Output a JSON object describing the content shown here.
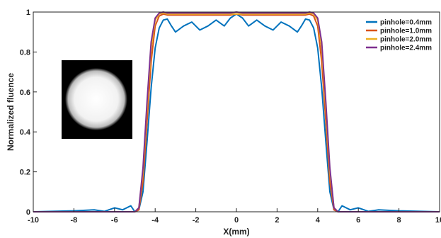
{
  "chart_data": {
    "type": "line",
    "xlabel": "X(mm)",
    "ylabel": "Normalized fluence",
    "xlim": [
      -10,
      10
    ],
    "ylim": [
      0,
      1
    ],
    "x_ticks": [
      -10,
      -8,
      -6,
      -4,
      -2,
      0,
      2,
      4,
      6,
      8,
      10
    ],
    "y_ticks": [
      0,
      0.2,
      0.4,
      0.6,
      0.8,
      1
    ],
    "x_tick_labels": [
      "-10",
      "-8",
      "-6",
      "-4",
      "-2",
      "0",
      "2",
      "4",
      "6",
      "8",
      "10"
    ],
    "y_tick_labels": [
      "0",
      "0.2",
      "0.4",
      "0.6",
      "0.8",
      "1"
    ],
    "grid": false,
    "legend_position": "top-right",
    "inset": "circular beam spot image (white disk on black square)",
    "series": [
      {
        "name": "pinhole=0.4mm",
        "color": "#0072BD",
        "x": [
          -10,
          -8,
          -7,
          -6.5,
          -6,
          -5.6,
          -5.2,
          -5.0,
          -4.8,
          -4.6,
          -4.4,
          -4.2,
          -4.0,
          -3.8,
          -3.6,
          -3.4,
          -3.2,
          -3.0,
          -2.6,
          -2.2,
          -1.8,
          -1.4,
          -1.0,
          -0.6,
          -0.3,
          0,
          0.3,
          0.6,
          1.0,
          1.4,
          1.8,
          2.2,
          2.6,
          3.0,
          3.2,
          3.4,
          3.6,
          3.8,
          4.0,
          4.2,
          4.4,
          4.6,
          4.8,
          5.0,
          5.2,
          5.6,
          6.0,
          6.5,
          7,
          8,
          10
        ],
        "values": [
          0.0,
          0.005,
          0.01,
          0.002,
          0.02,
          0.01,
          0.03,
          0.0,
          0.01,
          0.1,
          0.35,
          0.62,
          0.82,
          0.92,
          0.96,
          0.965,
          0.93,
          0.9,
          0.93,
          0.95,
          0.91,
          0.93,
          0.96,
          0.93,
          0.97,
          0.99,
          0.97,
          0.93,
          0.96,
          0.93,
          0.91,
          0.95,
          0.93,
          0.9,
          0.93,
          0.965,
          0.96,
          0.92,
          0.82,
          0.62,
          0.35,
          0.1,
          0.01,
          0.0,
          0.03,
          0.01,
          0.02,
          0.002,
          0.01,
          0.005,
          0.0
        ]
      },
      {
        "name": "pinhole=1.0mm",
        "color": "#D95319",
        "x": [
          -10,
          -6,
          -5.0,
          -4.8,
          -4.6,
          -4.4,
          -4.2,
          -4.0,
          -3.8,
          -3.6,
          -3.4,
          -3.0,
          -2.0,
          -1.0,
          -0.3,
          0,
          0.3,
          1.0,
          2.0,
          3.0,
          3.4,
          3.6,
          3.8,
          4.0,
          4.2,
          4.4,
          4.6,
          4.8,
          5.0,
          6,
          10
        ],
        "values": [
          0.0,
          0.0,
          0.0,
          0.01,
          0.15,
          0.45,
          0.75,
          0.93,
          0.98,
          0.99,
          0.985,
          0.985,
          0.985,
          0.985,
          0.985,
          0.99,
          0.985,
          0.985,
          0.985,
          0.985,
          0.985,
          0.99,
          0.98,
          0.93,
          0.75,
          0.45,
          0.15,
          0.01,
          0.0,
          0.0,
          0.0
        ]
      },
      {
        "name": "pinhole=2.0mm",
        "color": "#EDB120",
        "x": [
          -10,
          -6,
          -5.0,
          -4.8,
          -4.6,
          -4.4,
          -4.2,
          -4.0,
          -3.8,
          -3.6,
          -3.4,
          -3.0,
          -2.0,
          -1.0,
          0,
          1.0,
          2.0,
          3.0,
          3.4,
          3.6,
          3.8,
          4.0,
          4.2,
          4.4,
          4.6,
          4.8,
          5.0,
          6,
          10
        ],
        "values": [
          0.0,
          0.0,
          0.0,
          0.02,
          0.2,
          0.52,
          0.82,
          0.96,
          0.99,
          0.995,
          0.99,
          0.99,
          0.99,
          0.99,
          0.99,
          0.99,
          0.99,
          0.99,
          0.99,
          0.995,
          0.99,
          0.96,
          0.82,
          0.52,
          0.2,
          0.02,
          0.0,
          0.0,
          0.0
        ]
      },
      {
        "name": "pinhole=2.4mm",
        "color": "#7E2F8E",
        "x": [
          -10,
          -6,
          -5.0,
          -4.8,
          -4.6,
          -4.4,
          -4.2,
          -4.0,
          -3.8,
          -3.6,
          -3.4,
          -3.0,
          -2.0,
          -1.0,
          -0.3,
          0,
          0.3,
          1.0,
          2.0,
          3.0,
          3.4,
          3.6,
          3.8,
          4.0,
          4.2,
          4.4,
          4.6,
          4.8,
          5.0,
          6,
          10
        ],
        "values": [
          0.0,
          0.0,
          0.0,
          0.02,
          0.22,
          0.55,
          0.85,
          0.97,
          0.995,
          1.0,
          0.995,
          0.995,
          0.995,
          0.995,
          0.995,
          1.0,
          0.995,
          0.995,
          0.995,
          0.995,
          0.995,
          1.0,
          0.995,
          0.97,
          0.85,
          0.55,
          0.22,
          0.02,
          0.0,
          0.0,
          0.0
        ]
      }
    ]
  }
}
